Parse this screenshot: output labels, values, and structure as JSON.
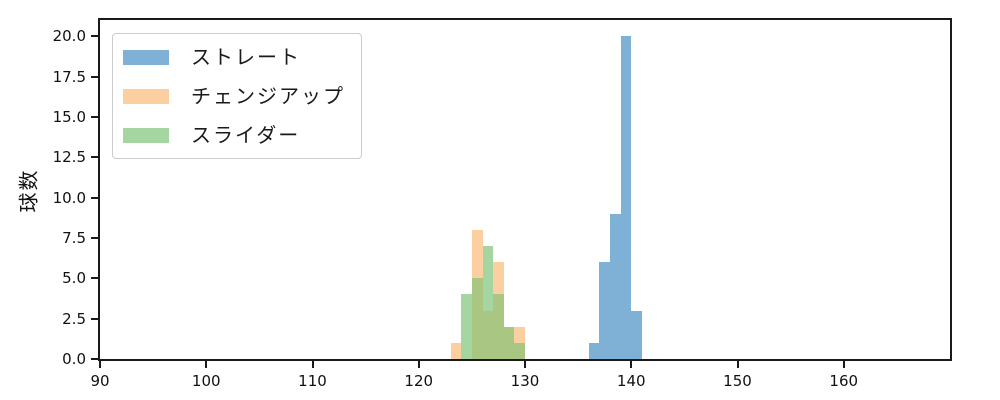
{
  "axes": {
    "ylabel": "球数",
    "x_tick_labels": [
      "90",
      "100",
      "110",
      "120",
      "130",
      "140",
      "150",
      "160"
    ],
    "y_tick_labels": [
      "0.0",
      "2.5",
      "5.0",
      "7.5",
      "10.0",
      "12.5",
      "15.0",
      "17.5",
      "20.0"
    ],
    "axis_color": "#1a1a1a"
  },
  "legend": {
    "items": [
      {
        "label": "ストレート",
        "color": "#7fb1d6"
      },
      {
        "label": "チェンジアップ",
        "color": "#fbcfa0"
      },
      {
        "label": "スライダー",
        "color": "#a5d5a0"
      }
    ]
  },
  "chart_data": {
    "type": "histogram",
    "title": "",
    "xlabel": "",
    "ylabel": "球数",
    "xlim": [
      90,
      170
    ],
    "ylim": [
      0,
      21
    ],
    "x_ticks": [
      90,
      100,
      110,
      120,
      130,
      140,
      150,
      160
    ],
    "y_ticks": [
      0,
      2.5,
      5,
      7.5,
      10,
      12.5,
      15,
      17.5,
      20
    ],
    "grid": false,
    "legend_position": "upper left",
    "overlap_color": "#a9c783",
    "series": [
      {
        "name": "ストレート",
        "color": "#7fb1d6",
        "bin_edges": [
          136,
          137,
          138,
          139,
          140,
          141
        ],
        "counts": [
          1,
          6,
          9,
          20,
          3
        ]
      },
      {
        "name": "チェンジアップ",
        "color": "#fbcfa0",
        "bin_edges": [
          123,
          124,
          125,
          126,
          127,
          128,
          129,
          130
        ],
        "counts": [
          1,
          0,
          8,
          3,
          6,
          2,
          2
        ]
      },
      {
        "name": "スライダー",
        "color": "#a5d5a0",
        "bin_edges": [
          123,
          124,
          125,
          126,
          127,
          128,
          129,
          130
        ],
        "counts": [
          0,
          4,
          5,
          7,
          4,
          2,
          1
        ]
      }
    ]
  }
}
